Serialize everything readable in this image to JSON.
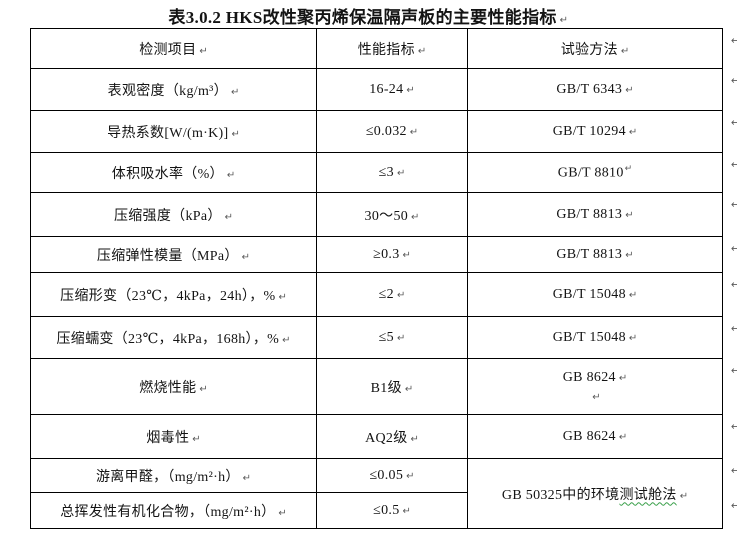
{
  "title": {
    "text": "表3.0.2 HKS改性聚丙烯保温隔声板的主要性能指标"
  },
  "marks": {
    "paragraph": "↵"
  },
  "colors": {
    "border": "#000000",
    "text": "#141414",
    "paragraph_mark": "#5a5a5a",
    "spellcheck_squiggle": "#3aa04a",
    "background": "#ffffff"
  },
  "table": {
    "headers": [
      {
        "label": "检测项目"
      },
      {
        "label": "性能指标"
      },
      {
        "label": "试验方法"
      }
    ],
    "rows": [
      {
        "item": "表观密度（kg/m³）",
        "value": "16-24",
        "method": "GB/T 6343"
      },
      {
        "item": "导热系数[W/(m·K)]",
        "value": "≤0.032",
        "method": "GB/T 10294"
      },
      {
        "item": "体积吸水率（%）",
        "value": "≤3",
        "method": "GB/T 8810"
      },
      {
        "item": "压缩强度（kPa）",
        "value": "30～50",
        "method": "GB/T 8813"
      },
      {
        "item": "压缩弹性模量（MPa）",
        "value": "≥0.3",
        "method": "GB/T 8813"
      },
      {
        "item": "压缩形变（23℃，4kPa，24h），%",
        "value": "≤2",
        "method": "GB/T 15048"
      },
      {
        "item": "压缩蠕变（23℃，4kPa，168h），%",
        "value": "≤5",
        "method": "GB/T 15048"
      },
      {
        "item": "燃烧性能",
        "value": "B1级",
        "method": "GB 8624"
      },
      {
        "item": "烟毒性",
        "value": "AQ2级",
        "method": "GB 8624"
      },
      {
        "item": "游离甲醛，（mg/m²·h）",
        "value": "≤0.05",
        "method_prefix": "GB 50325中的环境",
        "method_underlined": "测试舱法"
      },
      {
        "item": "总挥发性有机化合物，（mg/m²·h）",
        "value": "≤0.5"
      }
    ]
  }
}
